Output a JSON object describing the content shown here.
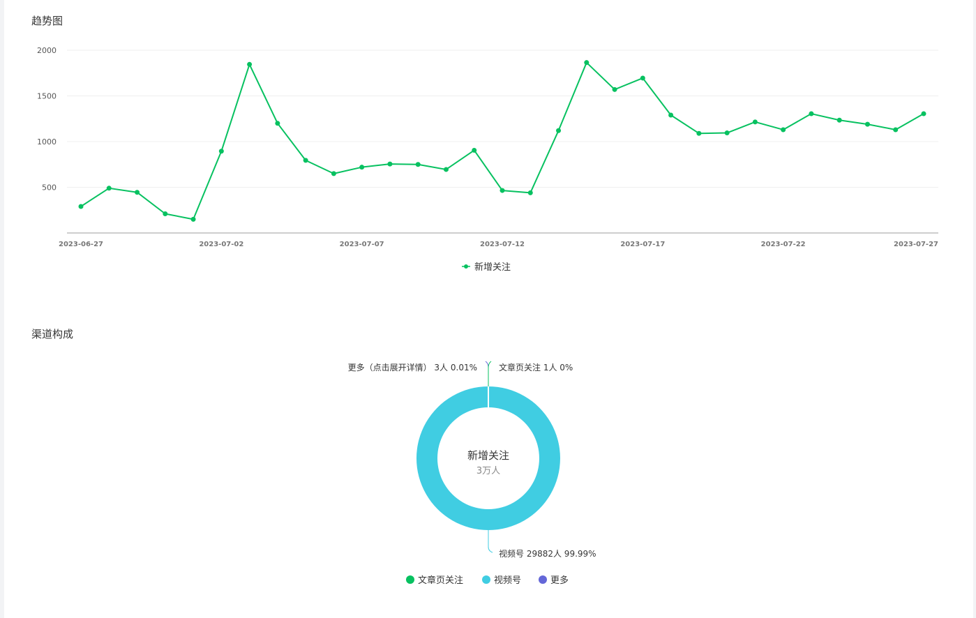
{
  "sections": {
    "trend_title": "趋势图",
    "channel_title": "渠道构成"
  },
  "chart_data": [
    {
      "type": "line",
      "title": "趋势图",
      "x": [
        "2023-06-27",
        "2023-06-28",
        "2023-06-29",
        "2023-06-30",
        "2023-07-01",
        "2023-07-02",
        "2023-07-03",
        "2023-07-04",
        "2023-07-05",
        "2023-07-06",
        "2023-07-07",
        "2023-07-08",
        "2023-07-09",
        "2023-07-10",
        "2023-07-11",
        "2023-07-12",
        "2023-07-13",
        "2023-07-14",
        "2023-07-15",
        "2023-07-16",
        "2023-07-17",
        "2023-07-18",
        "2023-07-19",
        "2023-07-20",
        "2023-07-21",
        "2023-07-22",
        "2023-07-23",
        "2023-07-24",
        "2023-07-25",
        "2023-07-26",
        "2023-07-27"
      ],
      "x_tick_labels": [
        "2023-06-27",
        "2023-07-02",
        "2023-07-07",
        "2023-07-12",
        "2023-07-17",
        "2023-07-22",
        "2023-07-27"
      ],
      "y_tick_labels": [
        "2000",
        "1500",
        "1000",
        "500"
      ],
      "ylim": [
        0,
        2000
      ],
      "series": [
        {
          "name": "新增关注",
          "color": "#07c160",
          "values": [
            290,
            490,
            445,
            210,
            150,
            895,
            1845,
            1200,
            795,
            650,
            720,
            755,
            750,
            695,
            905,
            465,
            440,
            1120,
            1865,
            1570,
            1695,
            1290,
            1090,
            1095,
            1215,
            1130,
            1305,
            1235,
            1190,
            1130,
            1305
          ]
        }
      ],
      "legend": "bottom-center",
      "grid": true
    },
    {
      "type": "pie",
      "title": "渠道构成",
      "donut": true,
      "center_title": "新增关注",
      "center_subtitle": "3万人",
      "slices": [
        {
          "name": "文章页关注",
          "value": 1,
          "percent": "0%",
          "label": "文章页关注 1人 0%",
          "color": "#07c160"
        },
        {
          "name": "视频号",
          "value": 29882,
          "percent": "99.99%",
          "label": "视频号 29882人 99.99%",
          "color": "#40cde2"
        },
        {
          "name": "更多",
          "value": 3,
          "percent": "0.01%",
          "label": "更多（点击展开详情） 3人 0.01%",
          "color": "#6467d8"
        }
      ],
      "legend_items": [
        "文章页关注",
        "视频号",
        "更多"
      ],
      "legend": "bottom-center"
    }
  ]
}
